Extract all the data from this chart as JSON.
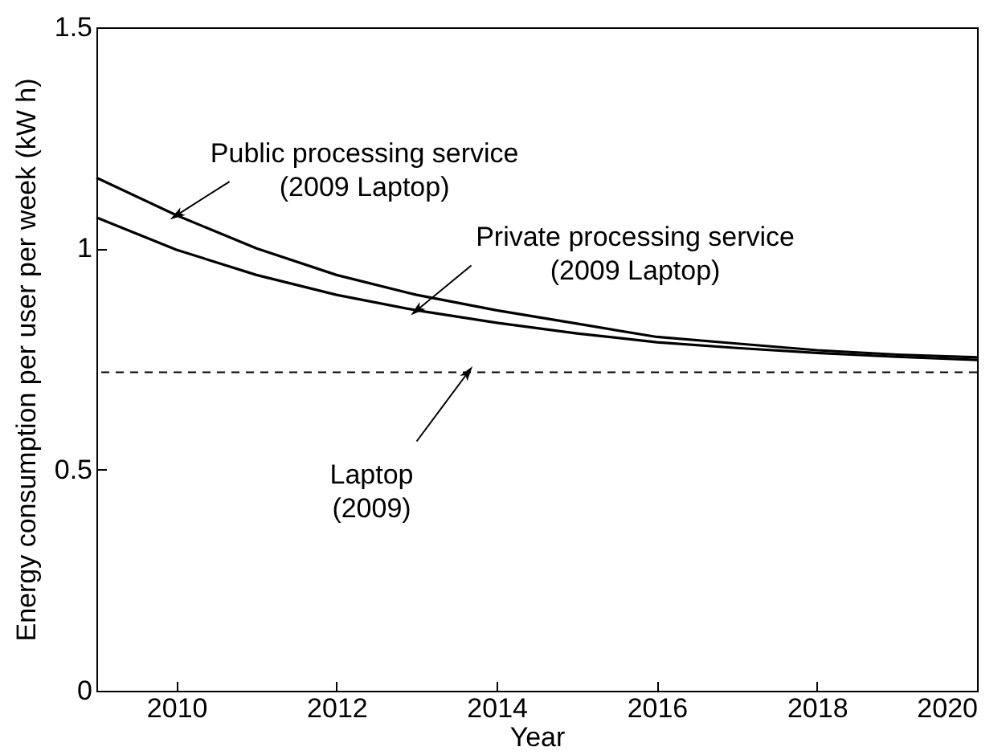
{
  "chart_data": {
    "type": "line",
    "xlabel": "Year",
    "ylabel": "Energy consumption per user per week (kW h)",
    "x": [
      2009,
      2010,
      2011,
      2012,
      2013,
      2014,
      2015,
      2016,
      2017,
      2018,
      2019,
      2020
    ],
    "series": [
      {
        "name": "Public processing service\n(2009 Laptop)",
        "color": "#000000",
        "values": [
          1.16,
          1.075,
          1.0,
          0.94,
          0.895,
          0.86,
          0.83,
          0.8,
          0.785,
          0.77,
          0.76,
          0.754
        ]
      },
      {
        "name": "Private processing service\n(2009 Laptop)",
        "color": "#000000",
        "values": [
          1.07,
          0.997,
          0.94,
          0.895,
          0.86,
          0.832,
          0.808,
          0.788,
          0.775,
          0.764,
          0.755,
          0.748
        ]
      }
    ],
    "ref_lines": [
      {
        "axis": "y",
        "value": 0.72,
        "label": "Laptop\n(2009)",
        "color": "#000000",
        "line_style": "dashed"
      }
    ],
    "xlim": [
      2009,
      2020
    ],
    "xticks": [
      2010,
      2012,
      2014,
      2016,
      2018,
      2020
    ],
    "ylim": [
      0,
      1.5
    ],
    "yticks": [
      0,
      0.5,
      1,
      1.5
    ],
    "grid": false,
    "marker": "none",
    "line_style": "solid"
  }
}
